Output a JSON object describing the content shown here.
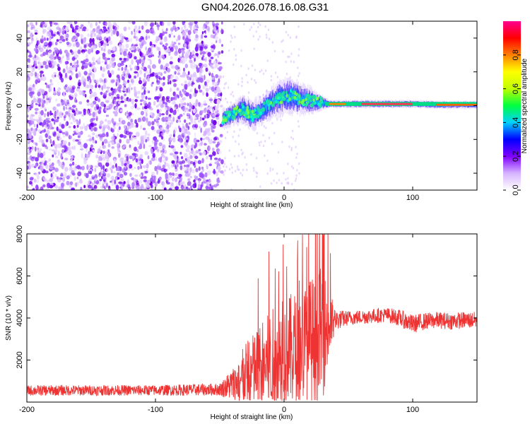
{
  "title": "GN04.2026.078.16.08.G31",
  "chart_data": [
    {
      "type": "heatmap",
      "name": "spectrogram",
      "xlabel": "Height of straight line (km)",
      "ylabel": "Frequency (Hz)",
      "xlim": [
        -200,
        150
      ],
      "ylim": [
        -50,
        50
      ],
      "xticks": [
        -200,
        -100,
        0,
        100
      ],
      "xtick_labels": [
        "-200",
        "-100",
        "0",
        "100"
      ],
      "yticks": [
        -40,
        -20,
        0,
        20,
        40
      ],
      "ytick_labels": [
        "-40",
        "-20",
        "0",
        "20",
        "40"
      ],
      "noise_region_x": [
        -200,
        -48
      ],
      "trace_x": [
        -48,
        -40,
        -32,
        -25,
        -18,
        -10,
        -2,
        5,
        12,
        20,
        28,
        35,
        45,
        60,
        80,
        100,
        120,
        150
      ],
      "trace_freq": [
        -8,
        -5,
        -2,
        -6,
        -3,
        2,
        5,
        6,
        4,
        3,
        2,
        1,
        1,
        1,
        1,
        1,
        0.5,
        0.5
      ],
      "trace_spread": [
        5,
        6,
        7,
        8,
        7,
        8,
        9,
        9,
        8,
        7,
        4,
        2,
        2,
        2,
        2,
        2,
        2,
        2
      ]
    },
    {
      "type": "colorbar",
      "label": "Normalized spectral amplitude",
      "range": [
        0,
        1
      ],
      "ticks": [
        0.0,
        0.2,
        0.4,
        0.6,
        0.8
      ],
      "tick_labels": [
        "0.0",
        "0.2",
        "0.4",
        "0.6",
        "0.8"
      ],
      "colors": [
        "#ffffff",
        "#d6b3ff",
        "#7f00ff",
        "#0000ff",
        "#00d0ff",
        "#00ff40",
        "#c0ff00",
        "#ffff00",
        "#ff8000",
        "#ff0000",
        "#ff0090"
      ]
    },
    {
      "type": "line",
      "name": "snr",
      "xlabel": "Height of straight line (km)",
      "ylabel": "SNR (10 * v/v)",
      "xlim": [
        -200,
        150
      ],
      "ylim": [
        0,
        8000
      ],
      "xticks": [
        -200,
        -100,
        0,
        100
      ],
      "xtick_labels": [
        "-200",
        "-100",
        "0",
        "100"
      ],
      "yticks": [
        2000,
        4000,
        6000,
        8000
      ],
      "ytick_labels": [
        "2000",
        "4000",
        "6000",
        "8000"
      ],
      "color": "#ee3333",
      "envelope": {
        "x": [
          -200,
          -150,
          -100,
          -50,
          -38,
          -30,
          -20,
          -10,
          0,
          10,
          20,
          30,
          40,
          50,
          60,
          70,
          80,
          90,
          100,
          110,
          120,
          130,
          140,
          150
        ],
        "base": [
          550,
          560,
          560,
          600,
          900,
          1300,
          1600,
          2000,
          2300,
          2600,
          2900,
          3300,
          3900,
          4000,
          4050,
          4100,
          4150,
          4000,
          3700,
          3850,
          3900,
          3850,
          3900,
          3900
        ],
        "amp": [
          250,
          250,
          250,
          300,
          900,
          1500,
          2000,
          2400,
          2600,
          2800,
          3000,
          3200,
          500,
          350,
          350,
          350,
          350,
          400,
          450,
          400,
          400,
          400,
          400,
          400
        ]
      }
    }
  ]
}
